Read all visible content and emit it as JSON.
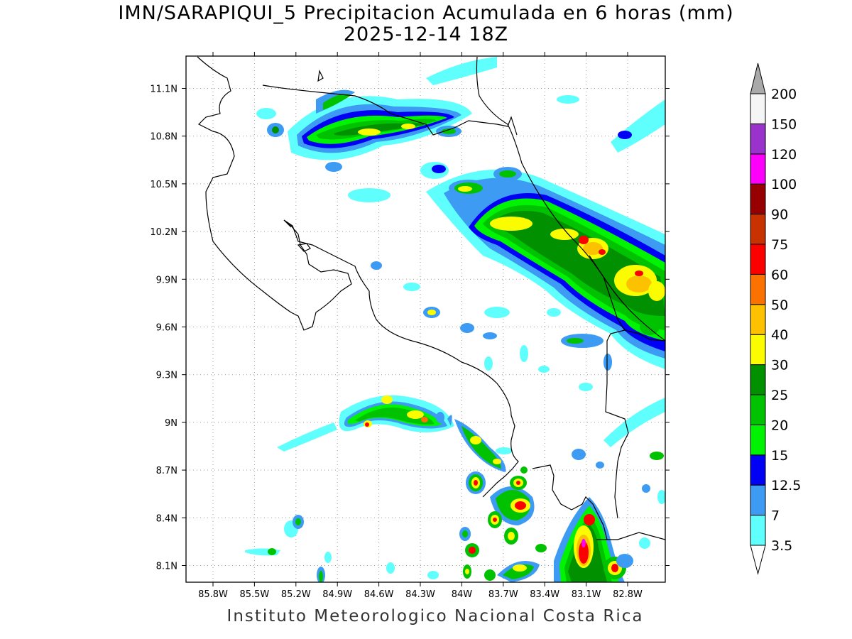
{
  "map": {
    "title": "IMN/SARAPIQUI_5 Precipitacion Acumulada en 6 horas (mm)",
    "subtitle": "2025-12-14 18Z",
    "credit": "Instituto Meteorologico Nacional Costa Rica",
    "lat_labels": [
      "11.1N",
      "10.8N",
      "10.5N",
      "10.2N",
      "9.9N",
      "9.6N",
      "9.3N",
      "9N",
      "8.7N",
      "8.4N",
      "8.1N"
    ],
    "lon_labels": [
      "85.8W",
      "85.5W",
      "85.2W",
      "84.9W",
      "84.6W",
      "84.3W",
      "84W",
      "83.7W",
      "83.4W",
      "83.1W",
      "82.8W"
    ]
  },
  "colorbar": {
    "levels": [
      "3.5",
      "7",
      "12.5",
      "15",
      "20",
      "25",
      "30",
      "40",
      "50",
      "60",
      "75",
      "90",
      "100",
      "120",
      "150",
      "200"
    ],
    "colors": [
      "#5ffffd",
      "#3d9bf3",
      "#0000f4",
      "#00f300",
      "#00c200",
      "#009000",
      "#fcfc00",
      "#fcc200",
      "#fc7200",
      "#fc0000",
      "#c83200",
      "#960000",
      "#fc00fc",
      "#9a32cc",
      "#f5f5f5",
      "#a9a9a9"
    ]
  }
}
